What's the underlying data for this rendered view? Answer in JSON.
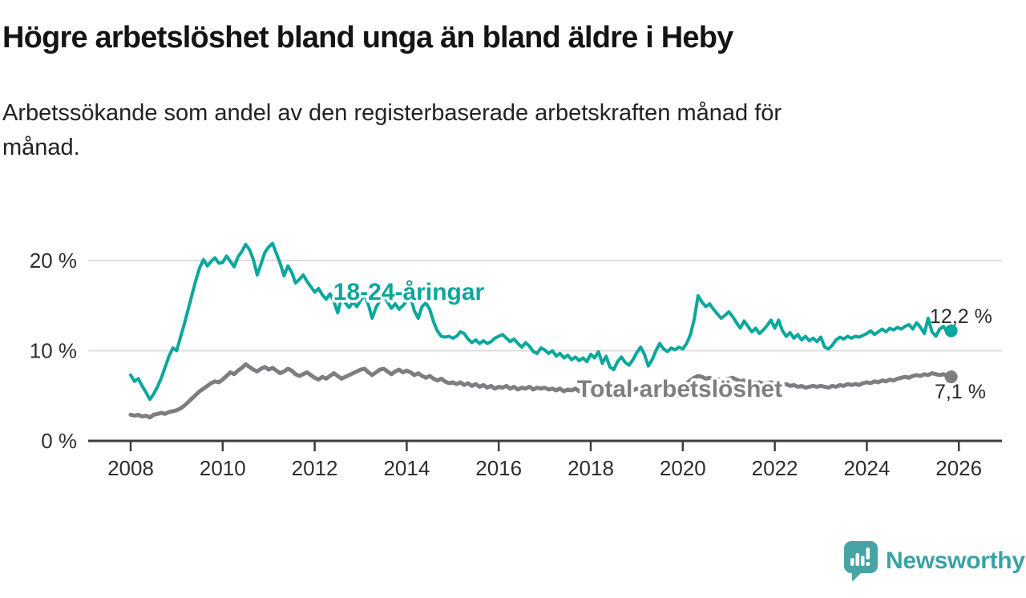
{
  "header": {
    "title": "Högre arbetslöshet bland unga än bland äldre i Heby",
    "subtitle_lines": [
      "Arbetssökande som andel av den registerbaserade arbetskraften månad för",
      "månad."
    ]
  },
  "branding": {
    "logo_text": "Newsworthy",
    "logo_icon": "bar-chart-speech-bubble-icon",
    "logo_color": "#46a4a4",
    "wordmark_color": "#3aa2a8"
  },
  "colors": {
    "young_line": "#0aa79c",
    "total_line": "#7e7e82",
    "gridline": "#dcdcdc",
    "axis": "#3d3d3d",
    "tick_label": "#2e2e2e",
    "value_label": "#2b2b2b",
    "title_text": "#141414"
  },
  "chart_data": {
    "type": "line",
    "title": "Högre arbetslöshet bland unga än bland äldre i Heby",
    "subtitle": "Arbetssökande som andel av den registerbaserade arbetskraften månad för månad.",
    "unit": "percent",
    "frequency": "monthly",
    "grid": true,
    "legend_position": "inline-labels",
    "x_axis": {
      "start_year": 2008,
      "tick_years": [
        2008,
        2010,
        2012,
        2014,
        2016,
        2018,
        2020,
        2022,
        2024,
        2026
      ],
      "range": [
        2007.9,
        2026.6
      ]
    },
    "y_axis": {
      "range": [
        0,
        23.5
      ],
      "ticks": [
        {
          "value": 0,
          "label": "0 %"
        },
        {
          "value": 10,
          "label": "10 %"
        },
        {
          "value": 20,
          "label": "20 %"
        }
      ]
    },
    "series": [
      {
        "id": "young",
        "name": "18-24-åringar",
        "color": "#0aa79c",
        "start": "2008-01",
        "end": "2025-11",
        "end_label": "12,2 %",
        "last_value": 12.2,
        "values": [
          7.3,
          6.6,
          6.9,
          6.1,
          5.4,
          4.6,
          5.2,
          6.0,
          7.0,
          8.2,
          9.4,
          10.3,
          10.0,
          11.5,
          13.0,
          14.6,
          16.2,
          17.8,
          19.2,
          20.1,
          19.4,
          19.9,
          20.3,
          19.7,
          19.8,
          20.5,
          19.9,
          19.3,
          20.4,
          21.0,
          21.8,
          21.2,
          20.1,
          18.4,
          19.6,
          20.9,
          21.5,
          21.9,
          20.8,
          19.7,
          18.3,
          19.4,
          18.7,
          17.5,
          17.9,
          18.4,
          17.7,
          17.1,
          16.5,
          16.9,
          16.2,
          15.7,
          16.3,
          15.5,
          14.2,
          15.9,
          15.3,
          14.8,
          15.4,
          14.9,
          15.6,
          16.2,
          15.1,
          13.6,
          14.8,
          15.5,
          16.1,
          15.4,
          14.7,
          15.2,
          14.6,
          15.0,
          15.5,
          16.0,
          14.4,
          13.6,
          14.9,
          15.3,
          14.6,
          13.2,
          12.2,
          11.6,
          11.5,
          11.6,
          11.4,
          11.6,
          12.1,
          11.9,
          11.3,
          10.9,
          11.2,
          10.8,
          11.1,
          10.8,
          11.0,
          11.4,
          11.6,
          11.8,
          11.4,
          11.0,
          11.3,
          10.8,
          10.4,
          10.9,
          10.5,
          9.9,
          9.7,
          10.3,
          10.1,
          9.7,
          10.0,
          9.4,
          9.7,
          9.2,
          9.5,
          9.0,
          9.3,
          8.9,
          9.2,
          8.8,
          9.6,
          9.2,
          9.9,
          8.6,
          9.4,
          8.2,
          7.9,
          8.8,
          9.3,
          8.7,
          8.4,
          9.0,
          9.8,
          10.4,
          9.6,
          8.3,
          9.0,
          10.0,
          10.8,
          10.2,
          9.9,
          10.3,
          10.1,
          10.4,
          10.2,
          10.8,
          11.8,
          13.5,
          16.1,
          15.4,
          14.9,
          15.2,
          14.6,
          14.1,
          13.6,
          13.9,
          14.3,
          13.8,
          13.1,
          12.5,
          13.3,
          12.7,
          12.1,
          12.5,
          11.9,
          12.3,
          12.8,
          13.4,
          12.5,
          13.4,
          12.2,
          11.6,
          12.0,
          11.4,
          11.8,
          11.2,
          11.6,
          11.1,
          11.4,
          11.0,
          11.5,
          10.4,
          10.2,
          10.6,
          11.2,
          11.5,
          11.3,
          11.6,
          11.4,
          11.6,
          11.5,
          11.7,
          11.9,
          12.2,
          11.8,
          12.1,
          12.4,
          12.1,
          12.5,
          12.3,
          12.6,
          12.4,
          12.7,
          12.9,
          12.4,
          13.1,
          12.6,
          11.9,
          13.6,
          12.1,
          11.6,
          12.4,
          12.7,
          12.0,
          12.2
        ]
      },
      {
        "id": "total",
        "name": "Total arbetslöshet",
        "color": "#7e7e82",
        "start": "2008-01",
        "end": "2025-11",
        "end_label": "7,1 %",
        "last_value": 7.1,
        "values": [
          2.9,
          2.8,
          2.9,
          2.7,
          2.8,
          2.6,
          2.9,
          3.0,
          3.1,
          3.0,
          3.2,
          3.3,
          3.4,
          3.6,
          3.9,
          4.3,
          4.7,
          5.1,
          5.5,
          5.8,
          6.1,
          6.4,
          6.6,
          6.5,
          6.8,
          7.2,
          7.6,
          7.4,
          7.8,
          8.1,
          8.5,
          8.2,
          7.9,
          7.7,
          8.0,
          8.2,
          7.9,
          8.1,
          7.8,
          7.5,
          7.7,
          8.0,
          7.8,
          7.4,
          7.2,
          7.4,
          7.6,
          7.3,
          7.0,
          6.8,
          7.1,
          6.9,
          7.2,
          7.5,
          7.2,
          6.9,
          7.1,
          7.3,
          7.5,
          7.7,
          7.9,
          8.0,
          7.6,
          7.3,
          7.6,
          7.9,
          8.0,
          7.7,
          7.4,
          7.7,
          7.9,
          7.6,
          7.8,
          7.6,
          7.3,
          7.5,
          7.2,
          7.0,
          7.2,
          6.9,
          6.7,
          6.9,
          6.6,
          6.4,
          6.5,
          6.3,
          6.5,
          6.2,
          6.4,
          6.1,
          6.3,
          6.0,
          6.2,
          5.9,
          6.1,
          5.8,
          6.0,
          5.9,
          6.1,
          5.8,
          6.0,
          5.7,
          5.9,
          5.8,
          6.0,
          5.7,
          5.9,
          5.8,
          5.9,
          5.7,
          5.8,
          5.6,
          5.8,
          5.5,
          5.7,
          5.6,
          5.8,
          5.5,
          5.7,
          5.6,
          5.7,
          5.5,
          5.6,
          5.4,
          5.6,
          5.3,
          5.5,
          5.4,
          5.6,
          5.5,
          5.7,
          5.6,
          5.8,
          5.6,
          5.7,
          5.5,
          5.8,
          5.6,
          5.9,
          5.7,
          6.0,
          5.8,
          6.1,
          6.0,
          6.2,
          6.4,
          6.7,
          7.0,
          7.2,
          7.1,
          6.9,
          7.0,
          6.8,
          6.9,
          6.7,
          6.8,
          6.9,
          7.0,
          6.8,
          6.6,
          6.7,
          6.5,
          6.6,
          6.4,
          6.5,
          6.3,
          6.4,
          6.5,
          6.3,
          6.4,
          6.2,
          6.3,
          6.1,
          6.2,
          6.0,
          6.1,
          5.9,
          6.0,
          6.1,
          6.0,
          6.1,
          6.0,
          5.9,
          6.1,
          6.0,
          6.2,
          6.1,
          6.3,
          6.2,
          6.3,
          6.2,
          6.4,
          6.5,
          6.4,
          6.6,
          6.5,
          6.7,
          6.6,
          6.8,
          6.7,
          6.9,
          7.0,
          7.1,
          7.0,
          7.2,
          7.3,
          7.2,
          7.4,
          7.3,
          7.5,
          7.4,
          7.3,
          7.4,
          7.2,
          7.1
        ]
      }
    ]
  }
}
